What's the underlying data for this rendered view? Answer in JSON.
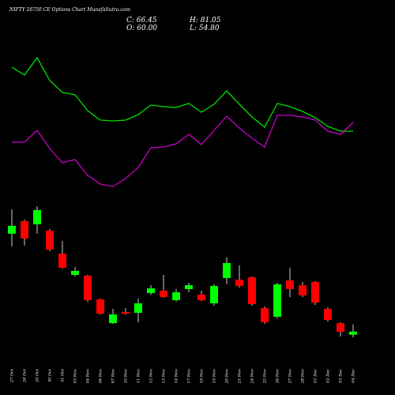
{
  "chart_data": [
    {
      "type": "candlestick",
      "title": "NIFTY 26750 CE Options Chart MunafaSutra.com",
      "ohlc_text": [
        "C: 66.45",
        "H: 81.05",
        "O: 60.00",
        "L: 54.80"
      ],
      "categories": [
        "27 Oct",
        "28 Oct",
        "29 Oct",
        "30 Oct",
        "31 Oct",
        "03 Nov",
        "04 Nov",
        "06 Nov",
        "07 Nov",
        "10 Nov",
        "11 Nov",
        "12 Nov",
        "13 Nov",
        "14 Nov",
        "17 Nov",
        "18 Nov",
        "19 Nov",
        "20 Nov",
        "21 Nov",
        "24 Nov",
        "25 Nov",
        "26 Nov",
        "27 Nov",
        "28 Nov",
        "01 Dec",
        "02 Dec",
        "03 Dec",
        "04 Dec"
      ],
      "open": [
        264.4,
        290,
        283.6,
        270.8,
        224.4,
        181.2,
        179.6,
        131.6,
        83.6,
        106,
        104.4,
        144.4,
        149.2,
        130,
        152.4,
        141.2,
        123.6,
        174.8,
        171.6,
        176.4,
        114,
        96.4,
        170,
        160.4,
        166.8,
        112.4,
        83.6,
        60
      ],
      "high": [
        314,
        293.2,
        320.4,
        274,
        250,
        197.2,
        181.2,
        133.2,
        112.4,
        114,
        133.2,
        160.4,
        181.2,
        152.4,
        165.2,
        149.2,
        162,
        216.4,
        200.4,
        178,
        117.2,
        165.2,
        195.6,
        166.8,
        168.4,
        115.6,
        85.2,
        81.05
      ],
      "low": [
        238.8,
        240.4,
        264.4,
        229.2,
        194,
        178,
        126.8,
        101.2,
        82,
        101.2,
        85.2,
        141.2,
        134.8,
        126.8,
        146,
        128.4,
        118.8,
        162,
        155.6,
        118.8,
        82,
        93.2,
        136.4,
        136.4,
        120.4,
        86.8,
        56.4,
        54.8
      ],
      "close": [
        280.4,
        254.8,
        312.4,
        232.4,
        195.6,
        189.2,
        130,
        102.8,
        101.2,
        102.8,
        123.6,
        154,
        136.4,
        146,
        160.4,
        130,
        158.8,
        205.2,
        158.8,
        122,
        85.2,
        162,
        152.4,
        139.6,
        125.2,
        90,
        66,
        66.45
      ],
      "up_color": "#00ff00",
      "down_color": "#ff0000",
      "ylim": [
        50,
        325
      ]
    },
    {
      "type": "line",
      "series": [
        {
          "color": "#00e000",
          "values": [
            165,
            155,
            177,
            148,
            133,
            130,
            110,
            98,
            97,
            98,
            105,
            117,
            115,
            114,
            119,
            108,
            118,
            135,
            118,
            102,
            89,
            119,
            115,
            109,
            101,
            90,
            84,
            84
          ]
        },
        {
          "color": "#c800c8",
          "values": [
            70,
            70,
            85,
            62,
            44,
            48,
            28,
            17,
            14,
            24,
            38,
            63,
            64,
            68,
            80,
            67,
            85,
            103,
            88,
            75,
            64,
            104,
            104,
            102,
            98,
            84,
            80,
            95
          ]
        }
      ],
      "ylim": [
        0,
        190
      ]
    }
  ]
}
